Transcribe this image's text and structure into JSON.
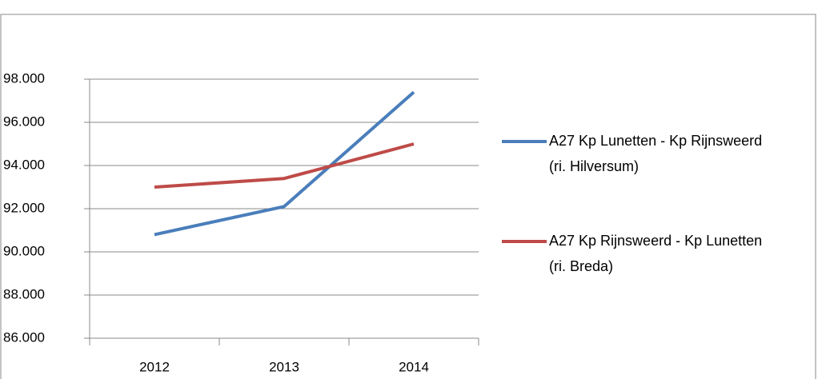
{
  "chart_data": {
    "type": "line",
    "categories": [
      "2012",
      "2013",
      "2014"
    ],
    "series": [
      {
        "name": "A27 Kp Lunetten - Kp Rijnsweerd (ri. Hilversum)",
        "color": "#4a7ebb",
        "values": [
          90800,
          92100,
          97400
        ]
      },
      {
        "name": "A27 Kp Rijnsweerd - Kp Lunetten (ri. Breda)",
        "color": "#be4b48",
        "values": [
          93000,
          93400,
          95000
        ]
      }
    ],
    "ylim": [
      86000,
      98000
    ],
    "yticks": [
      {
        "value": 86000,
        "label": "86.000"
      },
      {
        "value": 88000,
        "label": "88.000"
      },
      {
        "value": 90000,
        "label": "90.000"
      },
      {
        "value": 92000,
        "label": "92.000"
      },
      {
        "value": 94000,
        "label": "94.000"
      },
      {
        "value": 96000,
        "label": "96.000"
      },
      {
        "value": 98000,
        "label": "98.000"
      }
    ],
    "grid": true,
    "legend": "right"
  }
}
